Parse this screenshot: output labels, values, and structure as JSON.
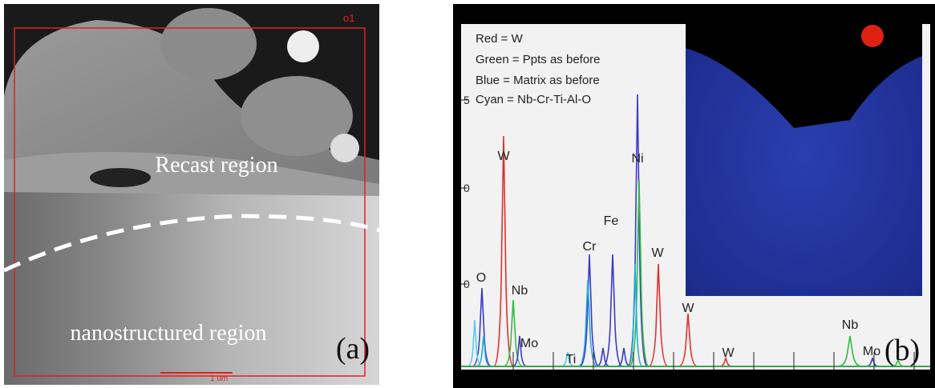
{
  "panel_a": {
    "marker": "o1",
    "region_labels": [
      "Recast region",
      "nanostructured region"
    ],
    "scale_bar": "1 um",
    "panel_label": "(a)"
  },
  "panel_b": {
    "legend": [
      "Red = W",
      "Green = Ppts as before",
      "Blue = Matrix as before",
      "Cyan = Nb-Cr-Ti-Al-O"
    ],
    "axis_fragments": [
      "5",
      "0",
      "0"
    ],
    "peak_labels": [
      "O",
      "Nb",
      "Mo",
      "Ti",
      "Cr",
      "Fe",
      "Ni",
      "W",
      "W",
      "W",
      "W",
      "Nb",
      "Mo"
    ],
    "panel_label": "(b)"
  }
}
